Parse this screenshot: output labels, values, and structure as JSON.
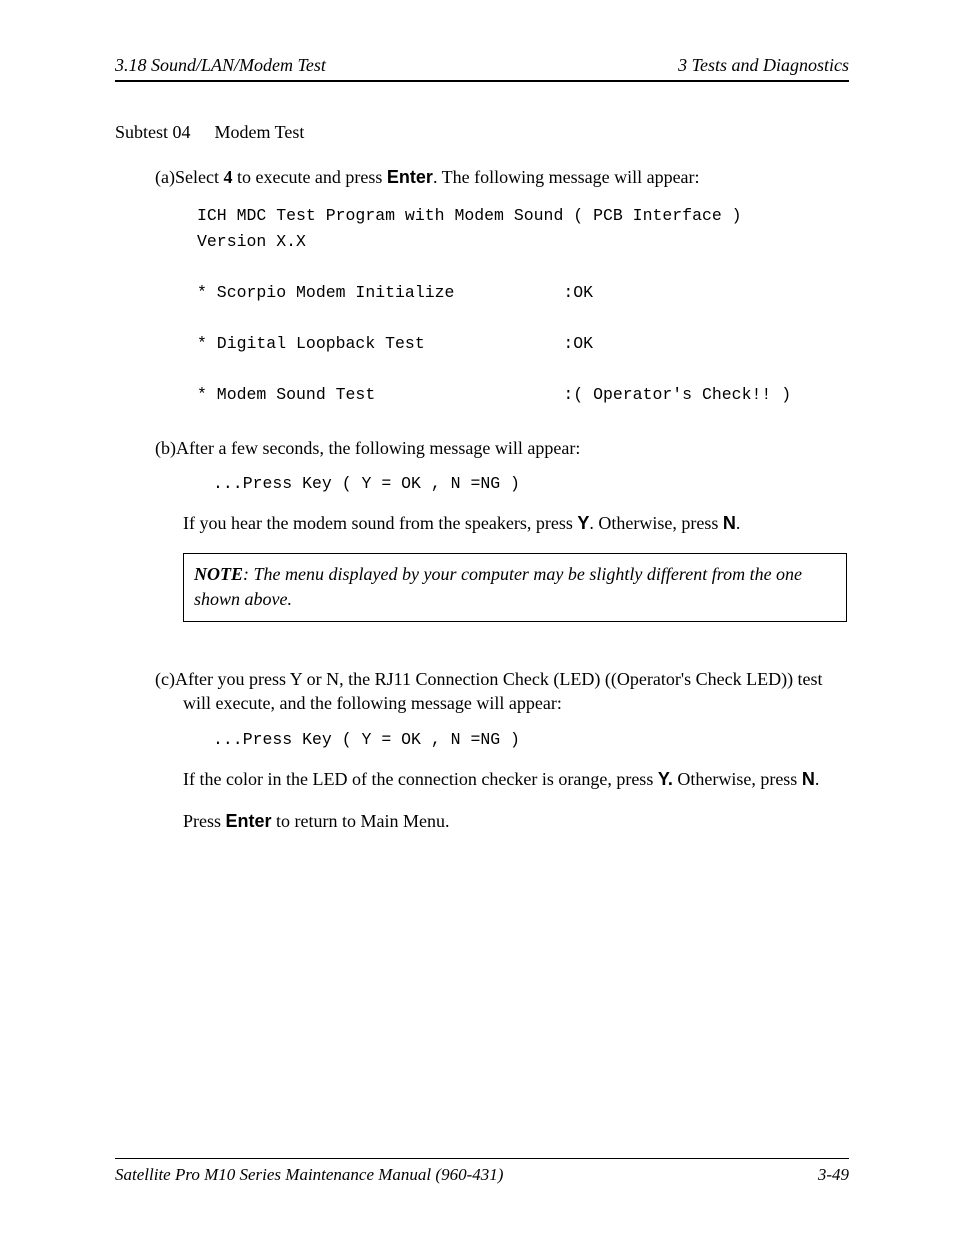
{
  "header": {
    "left": "3.18  Sound/LAN/Modem Test",
    "right": "3   Tests and Diagnostics"
  },
  "subtest": {
    "label": "Subtest 04",
    "title": "Modem Test"
  },
  "item_a": {
    "marker": "(a)",
    "pre": "Select ",
    "key": "4",
    "mid": " to execute and press ",
    "enter": "Enter",
    "post": ". The following message will appear:"
  },
  "code_a": "ICH MDC Test Program with Modem Sound ( PCB Interface )\nVersion X.X\n\n* Scorpio Modem Initialize           :OK\n\n* Digital Loopback Test              :OK\n\n* Modem Sound Test                   :( Operator's Check!! )",
  "item_b": {
    "marker": "(b)",
    "text": "After a few seconds, the following message will appear:"
  },
  "code_b": "...Press Key ( Y = OK , N =NG )",
  "para_b": {
    "pre": "If you hear the modem sound from the speakers, press ",
    "y": "Y",
    "mid": ".  Otherwise, press ",
    "n": "N",
    "post": "."
  },
  "note": {
    "label": "NOTE",
    "text": ": The menu displayed by your computer may be slightly different from the one shown above."
  },
  "item_c": {
    "marker": "(c)",
    "text": "After you press Y or N, the RJ11 Connection Check (LED) ((Operator's Check LED)) test will execute, and the following message will appear:"
  },
  "code_c": "...Press Key ( Y = OK , N =NG )",
  "para_c": {
    "pre": "If the color in the LED of the connection checker is orange, press ",
    "y": "Y.",
    "mid": " Otherwise, press ",
    "n": "N",
    "post": "."
  },
  "para_enter": {
    "pre": "Press ",
    "enter": "Enter",
    "post": " to return to Main Menu."
  },
  "footer": {
    "left": "Satellite Pro M10 Series Maintenance Manual (960-431)",
    "right": "3-49"
  }
}
